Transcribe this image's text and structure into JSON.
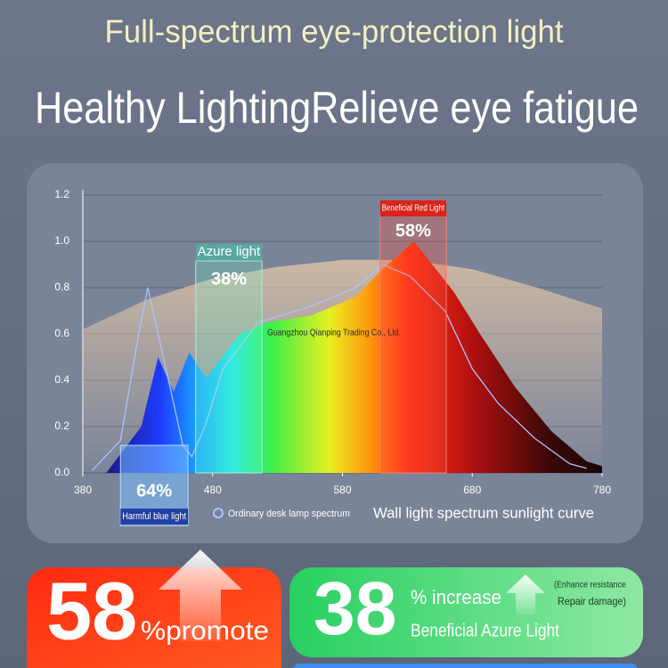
{
  "headline": {
    "title": "Full-spectrum eye-protection light",
    "subtitle": "Healthy LightingRelieve eye fatigue"
  },
  "chart_data": {
    "type": "area",
    "xlim": [
      380,
      780
    ],
    "xticks": [
      380,
      480,
      580,
      680,
      780
    ],
    "ylim": [
      0,
      1.2
    ],
    "yticks": [
      {
        "value": 0,
        "label": "0.0"
      },
      0.2,
      0.4,
      0.6,
      0.8,
      {
        "value": 1,
        "label": "1.0"
      },
      1.2
    ],
    "grid": true,
    "series": [
      {
        "name": "Ordinary desk lamp spectrum",
        "color": "#a9c4ff",
        "x": [
          387,
          409,
          423,
          430,
          438,
          450,
          457,
          464,
          474,
          488,
          515,
          556,
          590,
          611,
          632,
          659,
          680,
          700,
          728,
          755,
          768
        ],
        "values": [
          0.01,
          0.14,
          0.6,
          0.8,
          0.6,
          0.3,
          0.12,
          0.07,
          0.2,
          0.45,
          0.65,
          0.72,
          0.8,
          0.9,
          0.85,
          0.7,
          0.45,
          0.3,
          0.15,
          0.04,
          0.02
        ]
      },
      {
        "name": "Wall light spectrum sunlight curve",
        "x": [
          398,
          425,
          438,
          450,
          462,
          475,
          501,
          522,
          556,
          590,
          611,
          635,
          666,
          686,
          713,
          741,
          768,
          780
        ],
        "values": [
          0,
          0.2,
          0.5,
          0.35,
          0.52,
          0.41,
          0.6,
          0.65,
          0.68,
          0.76,
          0.88,
          1.0,
          0.78,
          0.6,
          0.37,
          0.18,
          0.05,
          0.03
        ]
      },
      {
        "color": "#e8c9a8",
        "x": [
          380,
          430,
          480,
          530,
          580,
          630,
          680,
          730,
          780
        ],
        "values": [
          0.62,
          0.75,
          0.84,
          0.89,
          0.92,
          0.92,
          0.88,
          0.8,
          0.71
        ]
      }
    ],
    "bands": [
      {
        "label": "Azure light",
        "value_label": "38%",
        "range": [
          467,
          518
        ]
      },
      {
        "label": "Beneficial Red Light",
        "value_label": "58%",
        "range": [
          609,
          660
        ]
      },
      {
        "label": "Harmful blue light",
        "value_label": "64%",
        "range": [
          409,
          461
        ]
      }
    ],
    "annotations": [
      {
        "text": "Guangzhou Qianping Trading Co., Ltd."
      }
    ]
  },
  "cards": [
    {
      "number": "58",
      "text": "%promote"
    },
    {
      "number": "38",
      "text": "% increase",
      "subtext": "Beneficial Azure Light",
      "note": [
        "(Enhance resistance",
        "Repair damage)"
      ]
    }
  ]
}
